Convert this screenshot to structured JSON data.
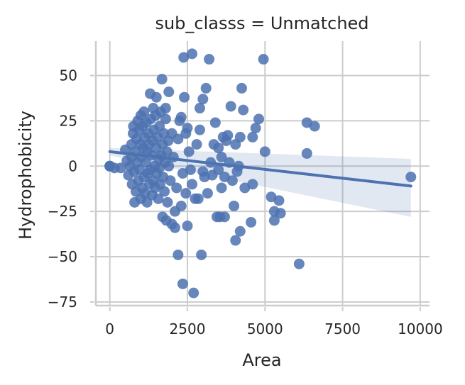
{
  "chart_data": {
    "type": "scatter",
    "title": "sub_classs = Unmatched",
    "xlabel": "Area",
    "ylabel": "Hydrophobicity",
    "xlim": [
      -450,
      10300
    ],
    "ylim": [
      -77,
      69
    ],
    "xticks": [
      0,
      2500,
      5000,
      7500,
      10000
    ],
    "xtick_labels": [
      "0",
      "2500",
      "5000",
      "7500",
      "10000"
    ],
    "yticks": [
      -75,
      -50,
      -25,
      0,
      25,
      50
    ],
    "ytick_labels": [
      "−75",
      "−50",
      "−25",
      "0",
      "25",
      "50"
    ],
    "grid": true,
    "legend": "none",
    "colors": {
      "points": "#4c72b0",
      "line": "#4c72b0",
      "band": "#4c72b0",
      "grid": "#cccccc",
      "spine": "#cccccc"
    },
    "regression": {
      "x": [
        0,
        9700
      ],
      "y": [
        8,
        -11
      ],
      "ci_lower": [
        6,
        -28
      ],
      "ci_upper": [
        10,
        4
      ]
    },
    "points": [
      [
        0,
        0
      ],
      [
        0,
        0
      ],
      [
        0,
        0
      ],
      [
        150,
        -1
      ],
      [
        350,
        -1
      ],
      [
        500,
        9
      ],
      [
        550,
        3
      ],
      [
        600,
        -5
      ],
      [
        650,
        0
      ],
      [
        700,
        5
      ],
      [
        700,
        12
      ],
      [
        720,
        -10
      ],
      [
        750,
        18
      ],
      [
        760,
        22
      ],
      [
        780,
        -3
      ],
      [
        800,
        -20
      ],
      [
        820,
        8
      ],
      [
        840,
        -14
      ],
      [
        860,
        15
      ],
      [
        880,
        2
      ],
      [
        900,
        25
      ],
      [
        920,
        -8
      ],
      [
        940,
        20
      ],
      [
        960,
        -2
      ],
      [
        980,
        12
      ],
      [
        1000,
        28
      ],
      [
        1000,
        -18
      ],
      [
        1020,
        5
      ],
      [
        1040,
        -12
      ],
      [
        1060,
        22
      ],
      [
        1080,
        10
      ],
      [
        1100,
        -6
      ],
      [
        1100,
        30
      ],
      [
        1120,
        16
      ],
      [
        1140,
        -15
      ],
      [
        1160,
        2
      ],
      [
        1180,
        24
      ],
      [
        1200,
        -20
      ],
      [
        1200,
        8
      ],
      [
        1220,
        -4
      ],
      [
        1240,
        18
      ],
      [
        1260,
        12
      ],
      [
        1280,
        -10
      ],
      [
        1300,
        40
      ],
      [
        1300,
        -2
      ],
      [
        1320,
        26
      ],
      [
        1340,
        6
      ],
      [
        1360,
        -16
      ],
      [
        1380,
        14
      ],
      [
        1400,
        32
      ],
      [
        1400,
        -8
      ],
      [
        1420,
        20
      ],
      [
        1440,
        0
      ],
      [
        1460,
        -12
      ],
      [
        1480,
        28
      ],
      [
        1500,
        38
      ],
      [
        1500,
        10
      ],
      [
        1520,
        -4
      ],
      [
        1540,
        16
      ],
      [
        1560,
        -18
      ],
      [
        1580,
        4
      ],
      [
        1600,
        22
      ],
      [
        1600,
        -1
      ],
      [
        1620,
        -10
      ],
      [
        1640,
        30
      ],
      [
        1660,
        6
      ],
      [
        1680,
        48
      ],
      [
        1700,
        -28
      ],
      [
        1700,
        12
      ],
      [
        1720,
        -6
      ],
      [
        1740,
        18
      ],
      [
        1760,
        -14
      ],
      [
        1780,
        2
      ],
      [
        1800,
        32
      ],
      [
        1800,
        26
      ],
      [
        1820,
        -30
      ],
      [
        1840,
        8
      ],
      [
        1860,
        -20
      ],
      [
        1880,
        14
      ],
      [
        1900,
        41
      ],
      [
        1900,
        0
      ],
      [
        1950,
        -8
      ],
      [
        2000,
        18
      ],
      [
        2000,
        -32
      ],
      [
        2050,
        5
      ],
      [
        2100,
        -25
      ],
      [
        2100,
        -34
      ],
      [
        2150,
        -12
      ],
      [
        2200,
        15
      ],
      [
        2200,
        -49
      ],
      [
        2250,
        25
      ],
      [
        2300,
        -22
      ],
      [
        2300,
        27
      ],
      [
        2350,
        -65
      ],
      [
        2350,
        -4
      ],
      [
        2380,
        60
      ],
      [
        2400,
        38
      ],
      [
        2450,
        -15
      ],
      [
        2450,
        18
      ],
      [
        2500,
        -33
      ],
      [
        2500,
        21
      ],
      [
        2550,
        8
      ],
      [
        2600,
        -2
      ],
      [
        2650,
        62
      ],
      [
        2650,
        -10
      ],
      [
        2700,
        -70
      ],
      [
        2750,
        -18
      ],
      [
        2800,
        12
      ],
      [
        2850,
        -18
      ],
      [
        2900,
        20
      ],
      [
        2900,
        32
      ],
      [
        2950,
        -49
      ],
      [
        3000,
        37
      ],
      [
        3000,
        -3
      ],
      [
        3050,
        -6
      ],
      [
        3100,
        43
      ],
      [
        3150,
        -15
      ],
      [
        3200,
        59
      ],
      [
        3250,
        2
      ],
      [
        3300,
        -5
      ],
      [
        3350,
        12
      ],
      [
        3400,
        24
      ],
      [
        3450,
        -28
      ],
      [
        3500,
        -2
      ],
      [
        3500,
        10
      ],
      [
        3550,
        -28
      ],
      [
        3600,
        -12
      ],
      [
        3600,
        5
      ],
      [
        3650,
        16
      ],
      [
        3700,
        -28
      ],
      [
        3700,
        -6
      ],
      [
        3750,
        14
      ],
      [
        3800,
        17
      ],
      [
        3850,
        2
      ],
      [
        3900,
        33
      ],
      [
        3950,
        -8
      ],
      [
        4000,
        -22
      ],
      [
        4050,
        12
      ],
      [
        4050,
        -41
      ],
      [
        4100,
        -3
      ],
      [
        4150,
        0
      ],
      [
        4200,
        -36
      ],
      [
        4200,
        16
      ],
      [
        4250,
        43
      ],
      [
        4300,
        31
      ],
      [
        4350,
        -12
      ],
      [
        4550,
        -31
      ],
      [
        4600,
        -10
      ],
      [
        4600,
        16
      ],
      [
        4700,
        21
      ],
      [
        4800,
        26
      ],
      [
        4950,
        59
      ],
      [
        5000,
        8
      ],
      [
        5200,
        -17
      ],
      [
        5300,
        -30
      ],
      [
        5300,
        -25
      ],
      [
        5450,
        -19
      ],
      [
        5500,
        -26
      ],
      [
        6100,
        -54
      ],
      [
        6350,
        7
      ],
      [
        6350,
        24
      ],
      [
        6600,
        22
      ],
      [
        9700,
        -6
      ]
    ]
  }
}
